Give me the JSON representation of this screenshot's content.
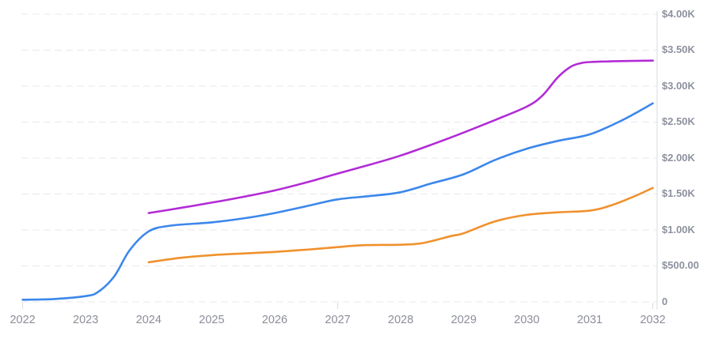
{
  "chart_data": {
    "type": "line",
    "title": "",
    "xlabel": "",
    "ylabel": "",
    "legend": "none",
    "grid": "horizontal-dashed",
    "x_axis": {
      "range": [
        2022,
        2032
      ],
      "tick_labels": [
        "2022",
        "2023",
        "2024",
        "2025",
        "2026",
        "2027",
        "2028",
        "2029",
        "2030",
        "2031",
        "2032"
      ],
      "tick_years": [
        2022,
        2023,
        2024,
        2025,
        2026,
        2027,
        2028,
        2029,
        2030,
        2031,
        2032
      ],
      "axis_tick_marks": [
        2022,
        2027,
        2032
      ]
    },
    "y_axis": {
      "range": [
        0,
        4000
      ],
      "unit": "USD",
      "position": "right",
      "ticks": [
        {
          "label": "$4.00K",
          "value": 4000
        },
        {
          "label": "$3.50K",
          "value": 3500
        },
        {
          "label": "$3.00K",
          "value": 3000
        },
        {
          "label": "$2.50K",
          "value": 2500
        },
        {
          "label": "$2.00K",
          "value": 2000
        },
        {
          "label": "$1.50K",
          "value": 1500
        },
        {
          "label": "$1.00K",
          "value": 1000
        },
        {
          "label": "$500.00",
          "value": 500
        },
        {
          "label": "0",
          "value": 0
        }
      ]
    },
    "series": [
      {
        "name": "purple-series",
        "color": "#b22bd6",
        "points": [
          [
            2024,
            1235
          ],
          [
            2024.5,
            1305
          ],
          [
            2025,
            1380
          ],
          [
            2025.5,
            1460
          ],
          [
            2026,
            1550
          ],
          [
            2026.5,
            1660
          ],
          [
            2027,
            1785
          ],
          [
            2027.5,
            1905
          ],
          [
            2028,
            2035
          ],
          [
            2028.5,
            2190
          ],
          [
            2029,
            2355
          ],
          [
            2029.5,
            2530
          ],
          [
            2030,
            2715
          ],
          [
            2030.25,
            2870
          ],
          [
            2030.5,
            3130
          ],
          [
            2030.7,
            3270
          ],
          [
            2030.85,
            3318
          ],
          [
            2031,
            3335
          ],
          [
            2031.5,
            3348
          ],
          [
            2032,
            3355
          ]
        ]
      },
      {
        "name": "blue-series",
        "color": "#3b87eb",
        "points": [
          [
            2022,
            30
          ],
          [
            2022.5,
            40
          ],
          [
            2023,
            80
          ],
          [
            2023.2,
            140
          ],
          [
            2023.45,
            350
          ],
          [
            2023.7,
            720
          ],
          [
            2024,
            980
          ],
          [
            2024.35,
            1060
          ],
          [
            2025,
            1105
          ],
          [
            2025.5,
            1160
          ],
          [
            2026,
            1235
          ],
          [
            2026.5,
            1330
          ],
          [
            2027,
            1425
          ],
          [
            2027.5,
            1470
          ],
          [
            2028,
            1525
          ],
          [
            2028.5,
            1650
          ],
          [
            2029,
            1775
          ],
          [
            2029.5,
            1975
          ],
          [
            2030,
            2130
          ],
          [
            2030.5,
            2240
          ],
          [
            2031,
            2330
          ],
          [
            2031.5,
            2520
          ],
          [
            2032,
            2760
          ]
        ]
      },
      {
        "name": "orange-series",
        "color": "#f0912d",
        "points": [
          [
            2024,
            550
          ],
          [
            2024.5,
            612
          ],
          [
            2025,
            650
          ],
          [
            2025.5,
            673
          ],
          [
            2026,
            695
          ],
          [
            2026.5,
            725
          ],
          [
            2027,
            762
          ],
          [
            2027.4,
            788
          ],
          [
            2028,
            795
          ],
          [
            2028.35,
            818
          ],
          [
            2028.8,
            915
          ],
          [
            2029,
            955
          ],
          [
            2029.5,
            1120
          ],
          [
            2030,
            1210
          ],
          [
            2030.5,
            1245
          ],
          [
            2031,
            1268
          ],
          [
            2031.35,
            1345
          ],
          [
            2031.7,
            1465
          ],
          [
            2032,
            1585
          ]
        ]
      }
    ],
    "style": {
      "grid_color": "#e9e9ef",
      "axis_line_color": "#d9dbe2",
      "y_label_color": "#8d919e",
      "x_label_color": "#8b8e99",
      "background": "#ffffff"
    }
  }
}
